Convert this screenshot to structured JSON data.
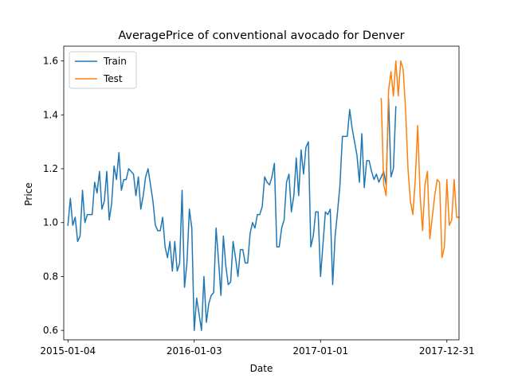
{
  "chart_data": {
    "type": "line",
    "title": "AveragePrice of conventional avocado for Denver",
    "xlabel": "Date",
    "ylabel": "Price",
    "x_range": [
      "2014-12-23",
      "2018-02-04"
    ],
    "ylim": [
      0.565,
      1.655
    ],
    "xticks": [
      "2015-01-04",
      "2016-01-03",
      "2017-01-01",
      "2017-12-31"
    ],
    "yticks": [
      0.6,
      0.8,
      1.0,
      1.2,
      1.4,
      1.6
    ],
    "ytick_labels": [
      "0.6",
      "0.8",
      "1.0",
      "1.2",
      "1.4",
      "1.6"
    ],
    "grid": false,
    "legend_position": "top-left",
    "series": [
      {
        "name": "Train",
        "color": "#1f77b4",
        "start_date": "2015-01-04",
        "interval_days": 7,
        "values": [
          0.99,
          1.09,
          0.99,
          1.02,
          0.93,
          0.95,
          1.12,
          1.0,
          1.03,
          1.03,
          1.03,
          1.15,
          1.11,
          1.19,
          1.05,
          1.08,
          1.19,
          1.01,
          1.07,
          1.21,
          1.16,
          1.26,
          1.12,
          1.16,
          1.16,
          1.2,
          1.19,
          1.18,
          1.1,
          1.17,
          1.05,
          1.1,
          1.17,
          1.2,
          1.14,
          1.08,
          0.99,
          0.97,
          0.97,
          1.02,
          0.91,
          0.87,
          0.93,
          0.82,
          0.93,
          0.82,
          0.85,
          1.12,
          0.76,
          0.85,
          1.05,
          0.98,
          0.6,
          0.72,
          0.66,
          0.6,
          0.8,
          0.63,
          0.7,
          0.73,
          0.74,
          0.98,
          0.86,
          0.73,
          0.95,
          0.84,
          0.77,
          0.78,
          0.93,
          0.87,
          0.8,
          0.9,
          0.9,
          0.85,
          0.85,
          0.96,
          1.0,
          0.98,
          1.03,
          1.03,
          1.06,
          1.17,
          1.15,
          1.14,
          1.17,
          1.22,
          0.91,
          0.91,
          0.98,
          1.01,
          1.15,
          1.18,
          1.04,
          1.1,
          1.24,
          1.1,
          1.27,
          1.18,
          1.28,
          1.3,
          0.91,
          0.95,
          1.04,
          1.04,
          0.8,
          0.92,
          1.04,
          1.03,
          1.05,
          0.77,
          0.95,
          1.04,
          1.14,
          1.32,
          1.32,
          1.32,
          1.42,
          1.35,
          1.3,
          1.25,
          1.15,
          1.33,
          1.13,
          1.23,
          1.23,
          1.19,
          1.16,
          1.18,
          1.15,
          1.17,
          1.19,
          1.14,
          1.46,
          1.17,
          1.2,
          1.43
        ]
      },
      {
        "name": "Test",
        "color": "#ff7f0e",
        "start_date": "2017-06-25",
        "interval_days": 7,
        "values": [
          1.46,
          1.14,
          1.1,
          1.49,
          1.56,
          1.47,
          1.6,
          1.47,
          1.6,
          1.57,
          1.42,
          1.2,
          1.08,
          1.03,
          1.16,
          1.36,
          1.1,
          0.97,
          1.14,
          1.19,
          0.94,
          1.02,
          1.1,
          1.16,
          1.15,
          0.87,
          0.91,
          1.16,
          0.99,
          1.01,
          1.16,
          1.02,
          1.02
        ]
      }
    ]
  }
}
